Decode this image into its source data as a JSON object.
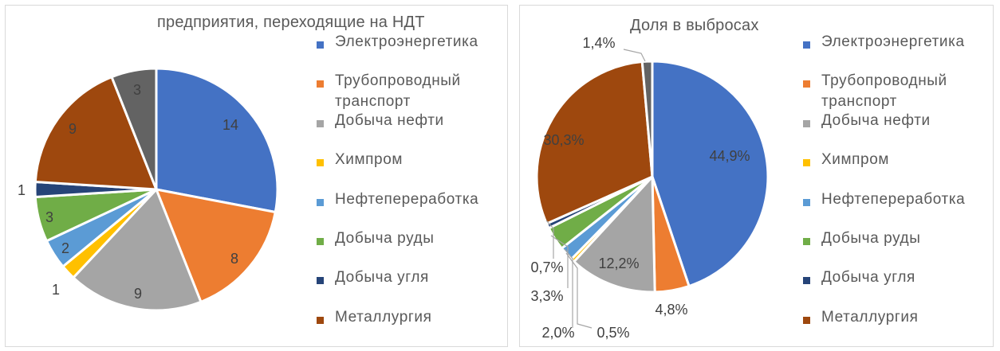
{
  "chart_data": [
    {
      "type": "pie",
      "title": "предприятия,  переходящие на НДТ",
      "categories": [
        "Электроэнергетика",
        "Трубопроводный транспорт",
        "Добыча нефти",
        "Химпром",
        "Нефтепереработка",
        "Добыча руды",
        "Добыча угля",
        "Металлургия",
        ""
      ],
      "values": [
        14,
        8,
        9,
        1,
        2,
        3,
        1,
        9,
        3
      ],
      "data_labels": [
        "14",
        "8",
        "9",
        "1",
        "2",
        "3",
        "1",
        "9",
        "3"
      ],
      "legend": [
        "Электроэнергетика",
        "Трубопроводный транспорт",
        "Добыча нефти",
        "Химпром",
        "Нефтепереработка",
        "Добыча руды",
        "Добыча угля",
        "Металлургия"
      ],
      "legend_position": "right",
      "colors": [
        "#4472C4",
        "#ED7D31",
        "#A5A5A5",
        "#FFC000",
        "#5B9BD5",
        "#70AD47",
        "#264478",
        "#9E480E",
        "#636363"
      ]
    },
    {
      "type": "pie",
      "title": "Доля в выбросах",
      "categories": [
        "Электроэнергетика",
        "Трубопроводный транспорт",
        "Добыча нефти",
        "Химпром",
        "Нефтепереработка",
        "Добыча руды",
        "Добыча угля",
        "Металлургия",
        ""
      ],
      "values": [
        44.9,
        4.8,
        12.2,
        0.5,
        2.0,
        3.3,
        0.7,
        30.3,
        1.4
      ],
      "data_labels": [
        "44,9%",
        "4,8%",
        "12,2%",
        "0,5%",
        "2,0%",
        "3,3%",
        "0,7%",
        "30,3%",
        "1,4%"
      ],
      "legend": [
        "Электроэнергетика",
        "Трубопроводный транспорт",
        "Добыча нефти",
        "Химпром",
        "Нефтепереработка",
        "Добыча руды",
        "Добыча угля",
        "Металлургия"
      ],
      "legend_position": "right",
      "colors": [
        "#4472C4",
        "#ED7D31",
        "#A5A5A5",
        "#FFC000",
        "#5B9BD5",
        "#70AD47",
        "#264478",
        "#9E480E",
        "#636363"
      ]
    }
  ]
}
